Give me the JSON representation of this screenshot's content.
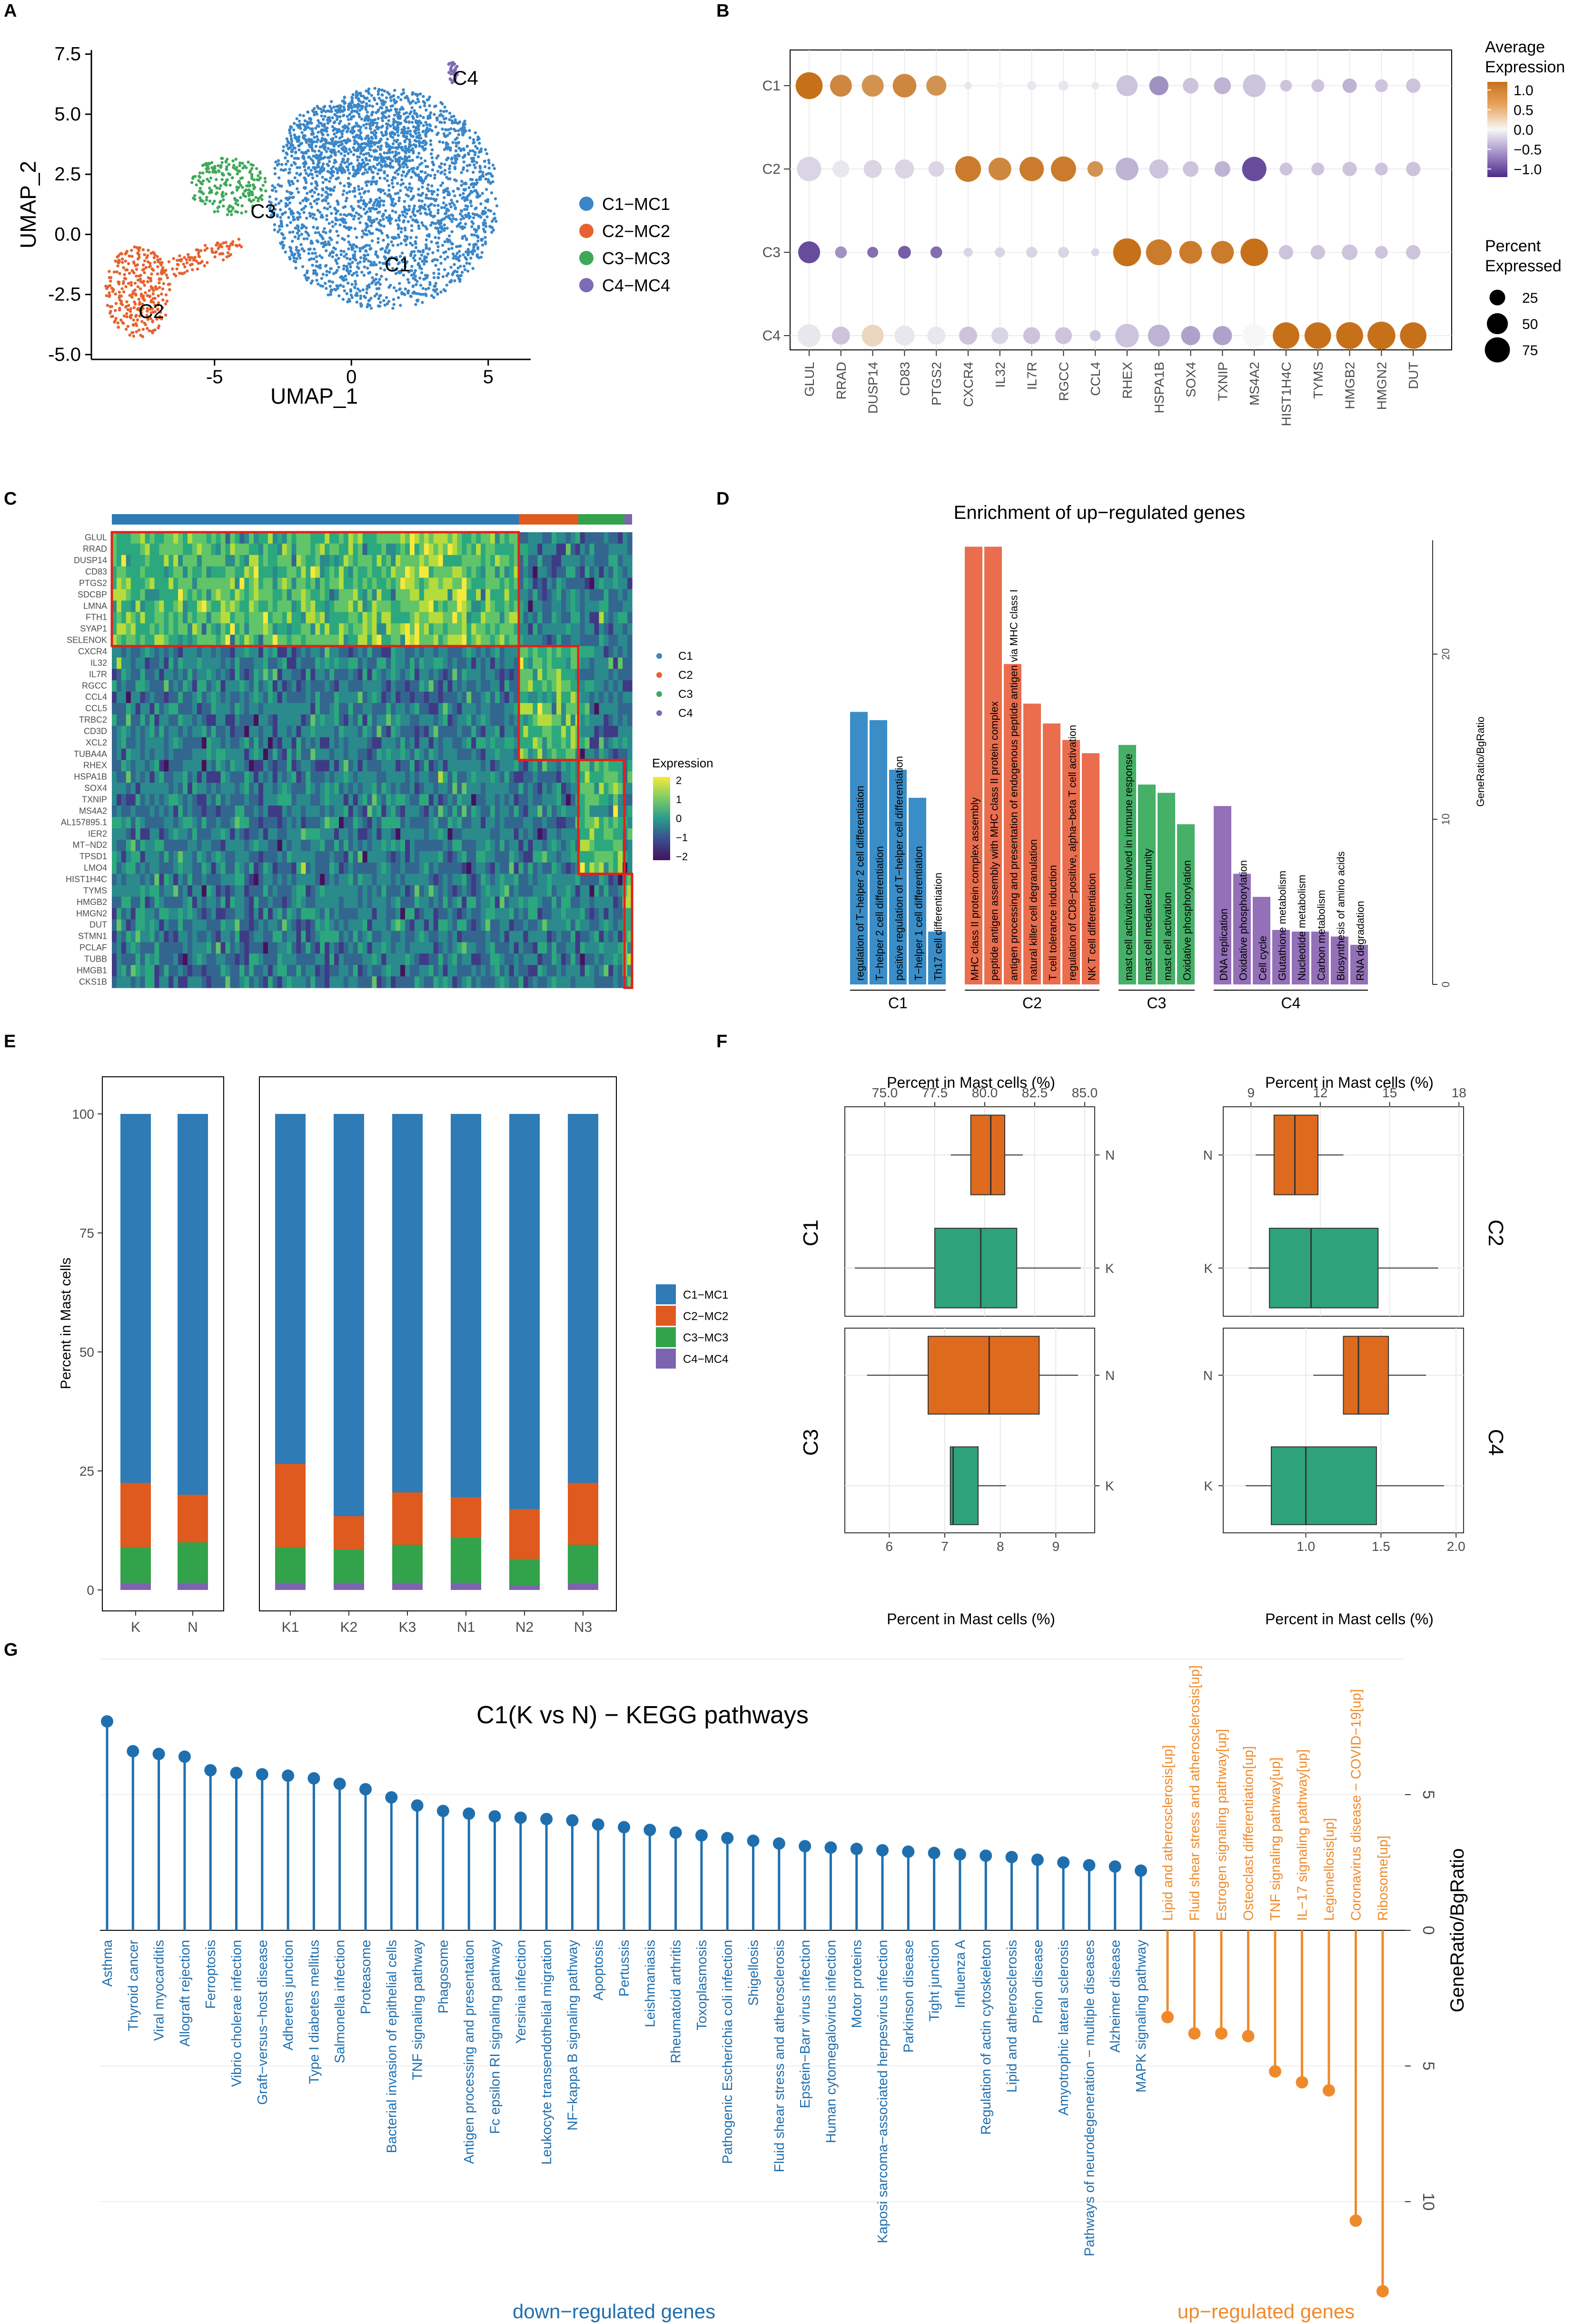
{
  "panels": {
    "A": {
      "label": "A",
      "xlabel": "UMAP_1",
      "ylabel": "UMAP_2",
      "xticks": [
        "-5",
        "0",
        "5"
      ],
      "yticks": [
        "-5.0",
        "-2.5",
        "0.0",
        "2.5",
        "5.0",
        "7.5"
      ],
      "legend": [
        "C1−MC1",
        "C2−MC2",
        "C3−MC3",
        "C4−MC4"
      ],
      "cluster_labels": [
        "C1",
        "C2",
        "C3",
        "C4"
      ],
      "colors": [
        "#3a87c8",
        "#e6622e",
        "#3fa85a",
        "#7c6bb5"
      ]
    },
    "B": {
      "label": "B",
      "rows": [
        "C1",
        "C2",
        "C3",
        "C4"
      ],
      "genes": [
        "GLUL",
        "RRAD",
        "DUSP14",
        "CD83",
        "PTGS2",
        "CXCR4",
        "IL32",
        "IL7R",
        "RGCC",
        "CCL4",
        "RHEX",
        "HSPA1B",
        "SOX4",
        "TXNIP",
        "MS4A2",
        "HIST1H4C",
        "TYMS",
        "HMGB2",
        "HMGN2",
        "DUT"
      ],
      "avg_expression": [
        [
          1.2,
          1.0,
          0.9,
          1.0,
          0.9,
          -0.1,
          0.0,
          -0.1,
          -0.1,
          -0.1,
          -0.3,
          -0.6,
          -0.3,
          -0.4,
          -0.3,
          -0.3,
          -0.3,
          -0.4,
          -0.3,
          -0.3
        ],
        [
          -0.2,
          -0.1,
          -0.2,
          -0.2,
          -0.2,
          1.1,
          1.0,
          1.1,
          1.1,
          0.9,
          -0.4,
          -0.3,
          -0.3,
          -0.4,
          -1.0,
          -0.3,
          -0.3,
          -0.3,
          -0.3,
          -0.3
        ],
        [
          -1.0,
          -0.6,
          -0.8,
          -0.9,
          -0.8,
          -0.2,
          -0.2,
          -0.2,
          -0.2,
          -0.2,
          1.2,
          1.1,
          1.1,
          1.1,
          1.2,
          -0.3,
          -0.3,
          -0.3,
          -0.3,
          -0.3
        ],
        [
          -0.1,
          -0.3,
          0.3,
          -0.1,
          -0.1,
          -0.3,
          -0.2,
          -0.3,
          -0.3,
          -0.3,
          -0.3,
          -0.4,
          -0.5,
          -0.5,
          0.0,
          1.2,
          1.2,
          1.2,
          1.2,
          1.2
        ]
      ],
      "pct_expressed": [
        [
          88,
          55,
          55,
          65,
          45,
          3,
          4,
          6,
          8,
          3,
          50,
          40,
          25,
          30,
          60,
          12,
          15,
          20,
          15,
          20
        ],
        [
          70,
          30,
          35,
          40,
          25,
          80,
          60,
          70,
          75,
          25,
          60,
          40,
          25,
          25,
          70,
          15,
          15,
          20,
          15,
          20
        ],
        [
          55,
          12,
          10,
          15,
          12,
          6,
          8,
          10,
          10,
          4,
          95,
          80,
          60,
          60,
          92,
          20,
          20,
          25,
          15,
          20
        ],
        [
          60,
          35,
          55,
          45,
          35,
          35,
          30,
          30,
          30,
          10,
          65,
          55,
          40,
          40,
          65,
          85,
          85,
          88,
          95,
          85
        ]
      ],
      "legend_title_1": "Average",
      "legend_title_2": "Expression",
      "color_ticks": [
        "1.0",
        "0.5",
        "0.0",
        "−0.5",
        "−1.0"
      ],
      "size_title_1": "Percent",
      "size_title_2": "Expressed",
      "size_ticks": [
        "25",
        "50",
        "75"
      ],
      "low_color": "#4b2a8a",
      "mid_color": "#f7f7f7",
      "high_color": "#c6711a"
    },
    "C": {
      "label": "C",
      "genes": [
        "GLUL",
        "RRAD",
        "DUSP14",
        "CD83",
        "PTGS2",
        "SDCBP",
        "LMNA",
        "FTH1",
        "SYAP1",
        "SELENOK",
        "CXCR4",
        "IL32",
        "IL7R",
        "RGCC",
        "CCL4",
        "CCL5",
        "TRBC2",
        "CD3D",
        "XCL2",
        "TUBA4A",
        "RHEX",
        "HSPA1B",
        "SOX4",
        "TXNIP",
        "MS4A2",
        "AL157895.1",
        "IER2",
        "MT−ND2",
        "TPSD1",
        "LMO4",
        "HIST1H4C",
        "TYMS",
        "HMGB2",
        "HMGN2",
        "DUT",
        "STMN1",
        "PCLAF",
        "TUBB",
        "HMGB1",
        "CKS1B"
      ],
      "legend": [
        "C1",
        "C2",
        "C3",
        "C4"
      ],
      "expression_title": "Expression",
      "expression_ticks": [
        "2",
        "1",
        "0",
        "−1",
        "−2"
      ]
    },
    "D": {
      "label": "D",
      "title": "Enrichment of up−regulated genes",
      "ylabel": "GeneRatio/BgRatio",
      "yticks": [
        "0",
        "10",
        "20"
      ],
      "groups": [
        "C1",
        "C2",
        "C3",
        "C4"
      ],
      "terms": [
        {
          "name": "regulation of T−helper 2 cell differentiation",
          "group": "C1",
          "value": 16.5
        },
        {
          "name": "T−helper 2 cell differentiation",
          "group": "C1",
          "value": 16.0
        },
        {
          "name": "positive regulation of T−helper cell differentiation",
          "group": "C1",
          "value": 13.0
        },
        {
          "name": "T−helper 1 cell differentiation",
          "group": "C1",
          "value": 11.3
        },
        {
          "name": "Th17 cell differentiation",
          "group": "C1",
          "value": 3.2
        },
        {
          "name": "MHC class II protein complex assembly",
          "group": "C2",
          "value": 26.5
        },
        {
          "name": "peptide antigen assembly with MHC class II protein complex",
          "group": "C2",
          "value": 26.5
        },
        {
          "name": "antigen processing and presentation of endogenous peptide antigen via MHC class I",
          "group": "C2",
          "value": 19.4
        },
        {
          "name": "natural killer cell degranulation",
          "group": "C2",
          "value": 17.0
        },
        {
          "name": "T cell tolerance induction",
          "group": "C2",
          "value": 15.8
        },
        {
          "name": "regulation of CD8−positive, alpha−beta T cell activation",
          "group": "C2",
          "value": 14.8
        },
        {
          "name": "NK T cell differentiation",
          "group": "C2",
          "value": 14.0
        },
        {
          "name": "mast cell activation involved in immune response",
          "group": "C3",
          "value": 14.5
        },
        {
          "name": "mast cell mediated immunity",
          "group": "C3",
          "value": 12.1
        },
        {
          "name": "mast cell activation",
          "group": "C3",
          "value": 11.6
        },
        {
          "name": "Oxidative phosphorylation",
          "group": "C3",
          "value": 9.7
        },
        {
          "name": "DNA replication",
          "group": "C4",
          "value": 10.8
        },
        {
          "name": "Oxidative phosphorylation",
          "group": "C4",
          "value": 6.7
        },
        {
          "name": "Cell cycle",
          "group": "C4",
          "value": 5.3
        },
        {
          "name": "Glutathione metabolism",
          "group": "C4",
          "value": 3.3
        },
        {
          "name": "Nucleotide metabolism",
          "group": "C4",
          "value": 3.2
        },
        {
          "name": "Carbon metabolism",
          "group": "C4",
          "value": 3.2
        },
        {
          "name": "Biosynthesis of amino acids",
          "group": "C4",
          "value": 2.9
        },
        {
          "name": "RNA degradation",
          "group": "C4",
          "value": 2.4
        }
      ]
    },
    "E": {
      "label": "E",
      "ylabel": "Percent in Mast cells",
      "yticks": [
        "0",
        "25",
        "50",
        "75",
        "100"
      ],
      "legend": [
        "C1−MC1",
        "C2−MC2",
        "C3−MC3",
        "C4−MC4"
      ],
      "left_samples": [
        "K",
        "N"
      ],
      "right_samples": [
        "K1",
        "K2",
        "K3",
        "N1",
        "N2",
        "N3"
      ],
      "stacks": {
        "K": [
          77.5,
          13.5,
          7.5,
          1.5
        ],
        "N": [
          80.0,
          10.0,
          8.5,
          1.5
        ],
        "K1": [
          73.5,
          17.5,
          7.5,
          1.5
        ],
        "K2": [
          84.5,
          7.0,
          7.0,
          1.5
        ],
        "K3": [
          79.5,
          11.0,
          8.0,
          1.5
        ],
        "N1": [
          80.5,
          8.5,
          9.5,
          1.5
        ],
        "N2": [
          83.0,
          10.5,
          5.5,
          1.0
        ],
        "N3": [
          77.5,
          13.0,
          8.0,
          1.5
        ]
      }
    },
    "F": {
      "label": "F",
      "top_xlabel": "Percent in Mast cells (%)",
      "bottom_xlabel": "Percent in Mast cells (%)",
      "left_top_ticks": [
        "75.0",
        "77.5",
        "80.0",
        "82.5",
        "85.0"
      ],
      "right_top_ticks": [
        "9",
        "12",
        "15",
        "18"
      ],
      "left_bottom_ticks": [
        "6",
        "7",
        "8",
        "9"
      ],
      "right_bottom_ticks": [
        "1.0",
        "1.5",
        "2.0"
      ],
      "facets": [
        "C1",
        "C2",
        "C3",
        "C4"
      ],
      "groups": [
        "N",
        "K"
      ],
      "boxes": {
        "C1": {
          "N": [
            78.3,
            79.3,
            80.3,
            81.0,
            81.9
          ],
          "K": [
            73.5,
            77.5,
            79.8,
            81.6,
            84.8
          ]
        },
        "C2": {
          "N": [
            9.2,
            10.0,
            10.9,
            11.9,
            13.0
          ],
          "K": [
            8.9,
            9.8,
            11.6,
            14.5,
            17.1
          ]
        },
        "C3": {
          "N": [
            5.6,
            6.7,
            7.8,
            8.7,
            9.4
          ],
          "K": [
            7.1,
            7.1,
            7.15,
            7.6,
            8.1
          ]
        },
        "C4": {
          "N": [
            1.05,
            1.25,
            1.35,
            1.55,
            1.8
          ],
          "K": [
            0.6,
            0.77,
            1.0,
            1.47,
            1.92
          ]
        }
      }
    },
    "G": {
      "label": "G",
      "title": "C1(K vs N) − KEGG pathways",
      "ylabel": "GeneRatio/BgRatio",
      "yticks": [
        "0",
        "5",
        "10"
      ],
      "down_label": "down−regulated genes",
      "up_label": "up−regulated genes",
      "down_color": "#1f6fae",
      "up_color": "#ef8a2a",
      "down": [
        {
          "name": "Asthma",
          "value": 7.7
        },
        {
          "name": "Thyroid cancer",
          "value": 6.6
        },
        {
          "name": "Viral myocarditis",
          "value": 6.5
        },
        {
          "name": "Allograft rejection",
          "value": 6.4
        },
        {
          "name": "Ferroptosis",
          "value": 5.9
        },
        {
          "name": "Vibrio cholerae infection",
          "value": 5.8
        },
        {
          "name": "Graft−versus−host disease",
          "value": 5.75
        },
        {
          "name": "Adherens junction",
          "value": 5.7
        },
        {
          "name": "Type I diabetes mellitus",
          "value": 5.6
        },
        {
          "name": "Salmonella infection",
          "value": 5.4
        },
        {
          "name": "Proteasome",
          "value": 5.2
        },
        {
          "name": "Bacterial invasion of epithelial cells",
          "value": 4.9
        },
        {
          "name": "TNF signaling pathway",
          "value": 4.6
        },
        {
          "name": "Phagosome",
          "value": 4.4
        },
        {
          "name": "Antigen processing and presentation",
          "value": 4.3
        },
        {
          "name": "Fc epsilon RI signaling pathway",
          "value": 4.2
        },
        {
          "name": "Yersinia infection",
          "value": 4.15
        },
        {
          "name": "Leukocyte transendothelial migration",
          "value": 4.1
        },
        {
          "name": "NF−kappa B signaling pathway",
          "value": 4.05
        },
        {
          "name": "Apoptosis",
          "value": 3.9
        },
        {
          "name": "Pertussis",
          "value": 3.8
        },
        {
          "name": "Leishmaniasis",
          "value": 3.7
        },
        {
          "name": "Rheumatoid arthritis",
          "value": 3.6
        },
        {
          "name": "Toxoplasmosis",
          "value": 3.5
        },
        {
          "name": "Pathogenic Escherichia coli infection",
          "value": 3.4
        },
        {
          "name": "Shigellosis",
          "value": 3.3
        },
        {
          "name": "Fluid shear stress and atherosclerosis",
          "value": 3.2
        },
        {
          "name": "Epstein−Barr virus infection",
          "value": 3.1
        },
        {
          "name": "Human cytomegalovirus infection",
          "value": 3.05
        },
        {
          "name": "Motor proteins",
          "value": 3.0
        },
        {
          "name": "Kaposi sarcoma−associated herpesvirus infection",
          "value": 2.95
        },
        {
          "name": "Parkinson disease",
          "value": 2.9
        },
        {
          "name": "Tight junction",
          "value": 2.85
        },
        {
          "name": "Influenza A",
          "value": 2.8
        },
        {
          "name": "Regulation of actin cytoskeleton",
          "value": 2.75
        },
        {
          "name": "Lipid and atherosclerosis",
          "value": 2.7
        },
        {
          "name": "Prion disease",
          "value": 2.6
        },
        {
          "name": "Amyotrophic lateral sclerosis",
          "value": 2.5
        },
        {
          "name": "Pathways of neurodegeneration − multiple diseases",
          "value": 2.4
        },
        {
          "name": "Alzheimer disease",
          "value": 2.35
        },
        {
          "name": "MAPK signaling pathway",
          "value": 2.2
        }
      ],
      "up": [
        {
          "name": "Lipid and atherosclerosis[up]",
          "value": 3.2
        },
        {
          "name": "Fluid shear stress and atherosclerosis[up]",
          "value": 3.8
        },
        {
          "name": "Estrogen signaling pathway[up]",
          "value": 3.8
        },
        {
          "name": "Osteoclast differentiation[up]",
          "value": 3.9
        },
        {
          "name": "TNF signaling pathway[up]",
          "value": 5.2
        },
        {
          "name": "IL−17 signaling pathway[up]",
          "value": 5.6
        },
        {
          "name": "Legionellosis[up]",
          "value": 5.9
        },
        {
          "name": "Coronavirus disease − COVID−19[up]",
          "value": 10.7
        },
        {
          "name": "Ribosome[up]",
          "value": 13.3
        }
      ]
    }
  }
}
